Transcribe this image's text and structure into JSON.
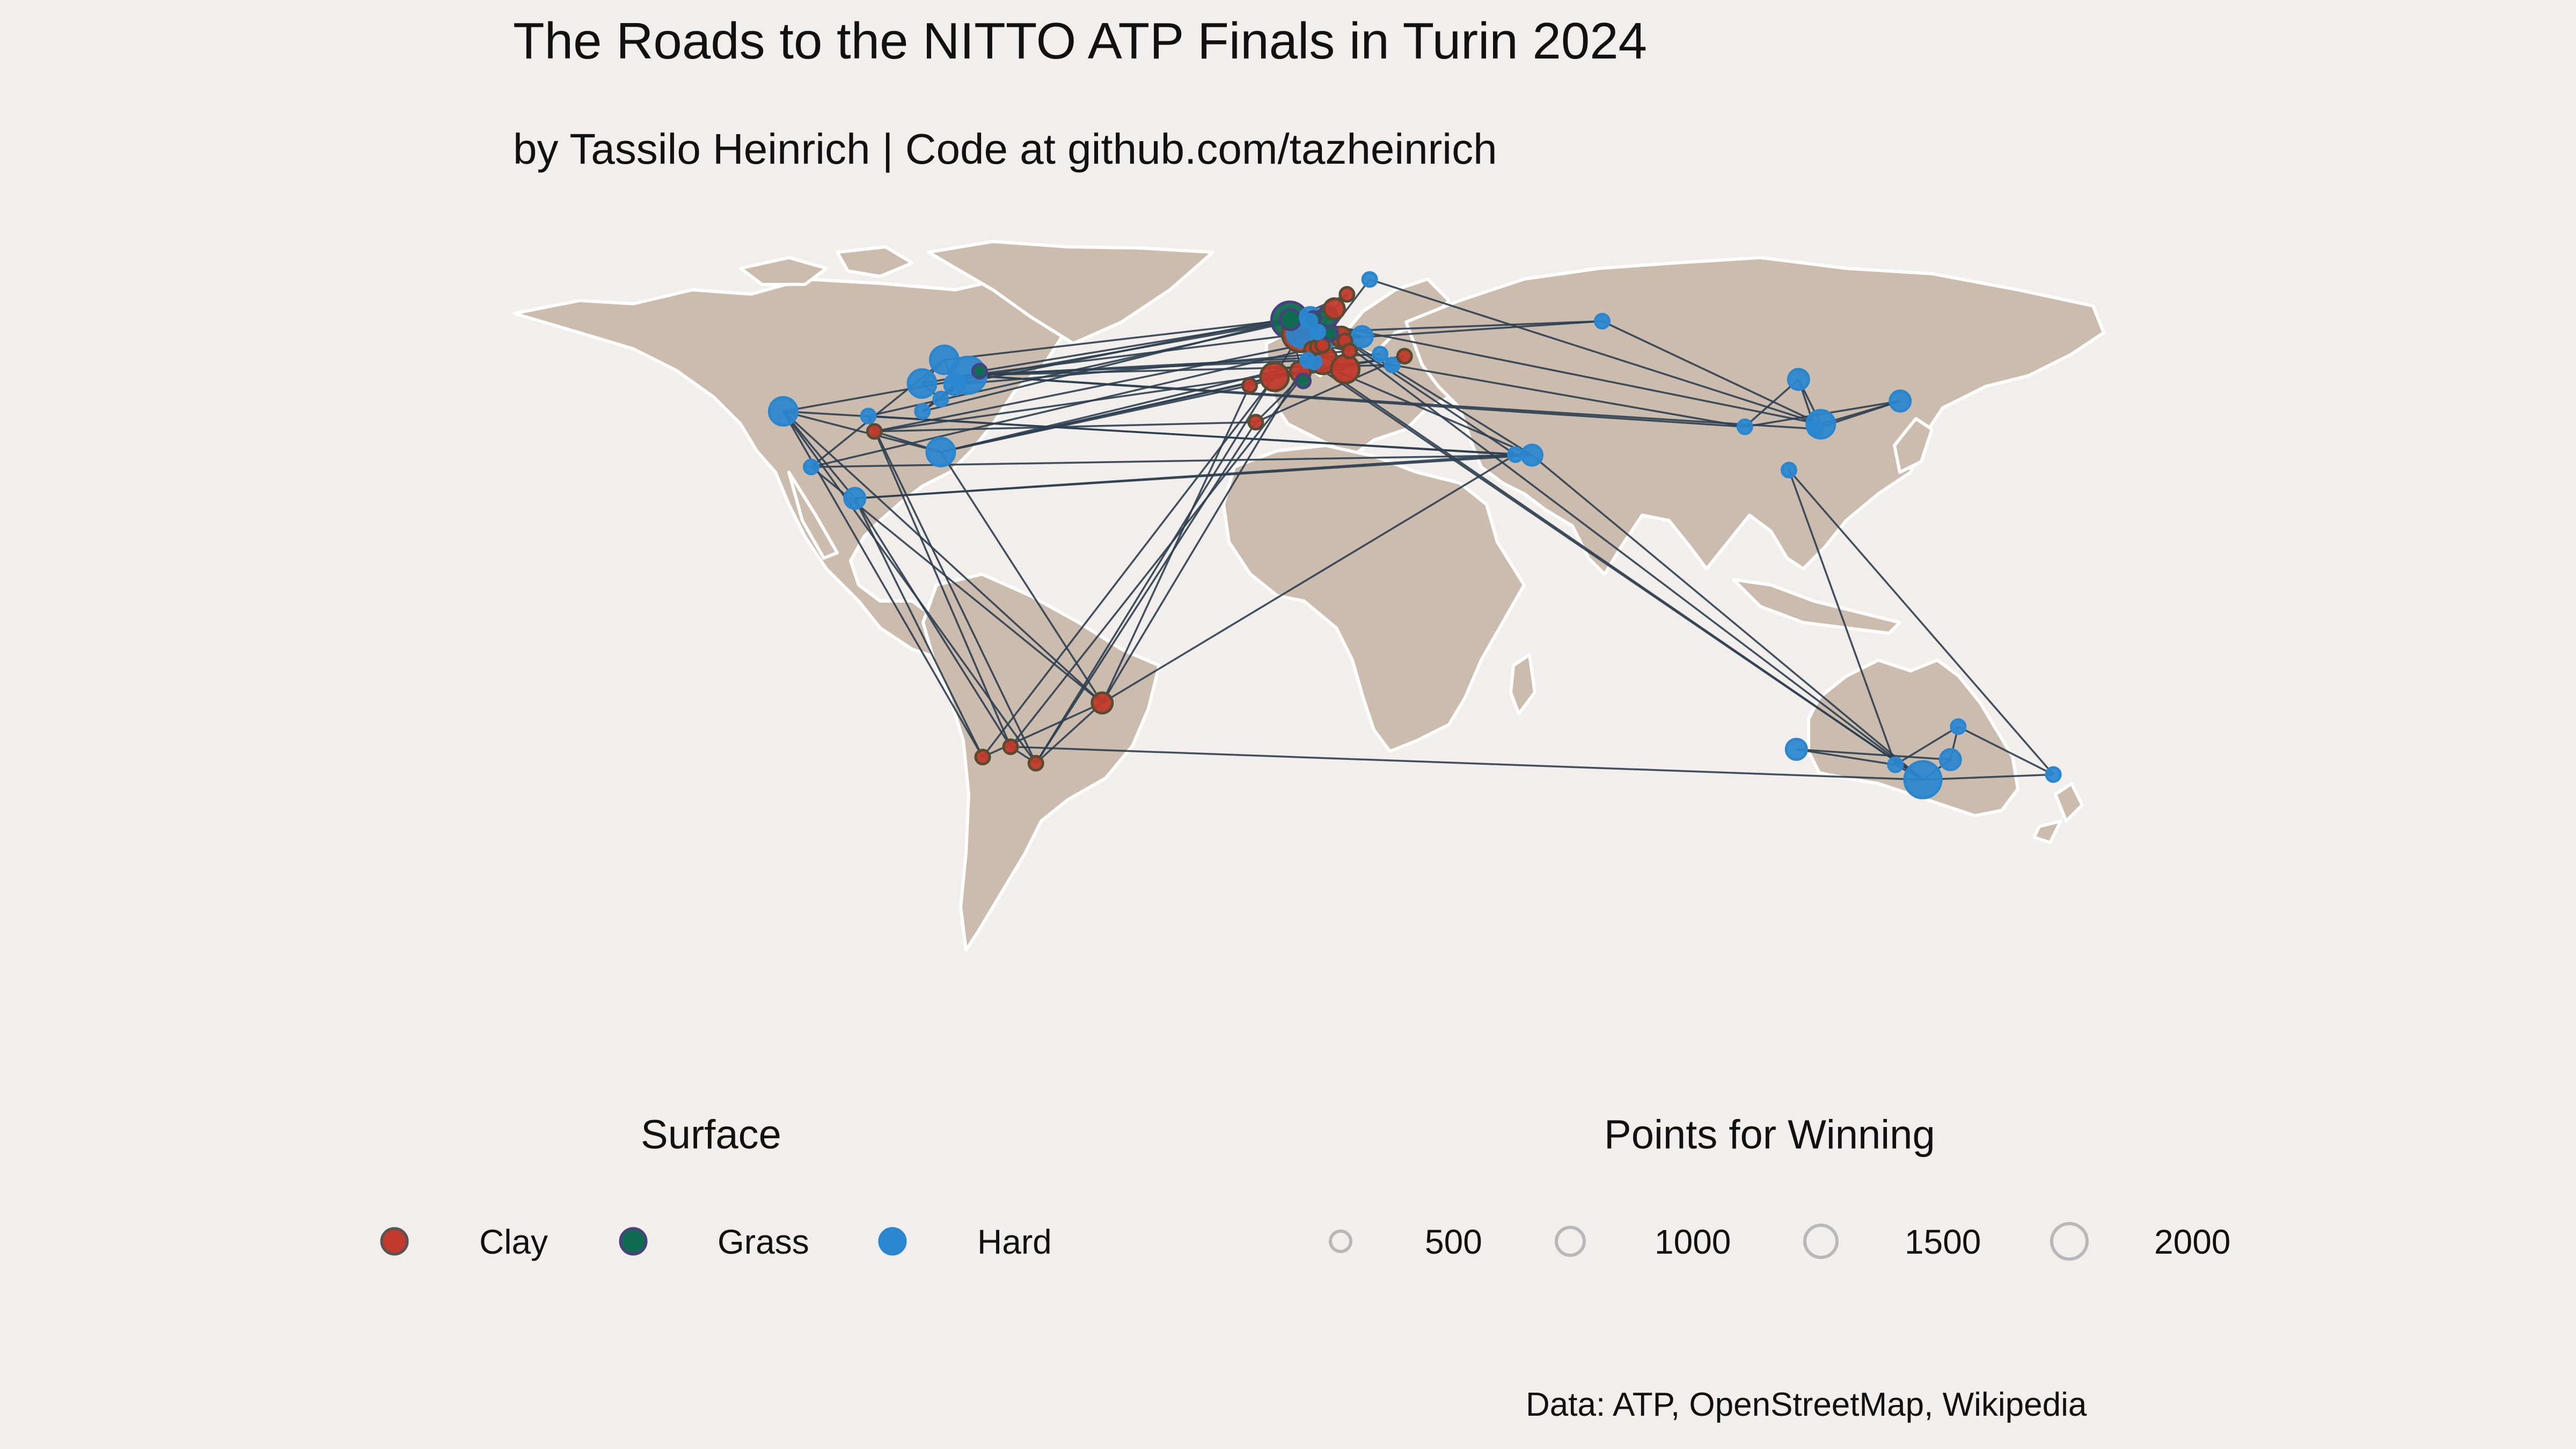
{
  "title": "The Roads to the NITTO ATP Finals in Turin 2024",
  "subtitle": "by Tassilo Heinrich | Code at github.com/tazheinrich",
  "caption": "Data: ATP, OpenStreetMap, Wikipedia",
  "colors": {
    "background": "#f1eeeb",
    "land": "#cbbcae",
    "border": "#ffffff",
    "route": "#2c3e50",
    "clay": "#c0392b",
    "grass": "#0e6b4f",
    "hard": "#2a87cf",
    "size_legend": "#b8b8b8"
  },
  "legend": {
    "surface": {
      "title": "Surface",
      "items": [
        {
          "label": "Clay",
          "surface": "clay"
        },
        {
          "label": "Grass",
          "surface": "grass"
        },
        {
          "label": "Hard",
          "surface": "hard"
        }
      ]
    },
    "points": {
      "title": "Points for Winning",
      "items": [
        {
          "label": "500",
          "value": 500
        },
        {
          "label": "1000",
          "value": 1000
        },
        {
          "label": "1500",
          "value": 1500
        },
        {
          "label": "2000",
          "value": 2000
        }
      ]
    }
  },
  "chart_data": {
    "type": "map",
    "projection": "equirectangular",
    "marks": [
      {
        "id": "indian-wells",
        "lon": -116.3,
        "lat": 33.7,
        "surface": "hard",
        "points": 1000
      },
      {
        "id": "los-cabos",
        "lon": -109.9,
        "lat": 22.9,
        "surface": "hard",
        "points": 250
      },
      {
        "id": "acapulco",
        "lon": -99.9,
        "lat": 16.8,
        "surface": "hard",
        "points": 500
      },
      {
        "id": "dallas",
        "lon": -96.8,
        "lat": 32.8,
        "surface": "hard",
        "points": 250
      },
      {
        "id": "houston",
        "lon": -95.4,
        "lat": 29.8,
        "surface": "clay",
        "points": 250
      },
      {
        "id": "cincinnati",
        "lon": -84.5,
        "lat": 39.1,
        "surface": "hard",
        "points": 1000
      },
      {
        "id": "atlanta",
        "lon": -84.4,
        "lat": 33.7,
        "surface": "hard",
        "points": 250
      },
      {
        "id": "miami",
        "lon": -80.2,
        "lat": 25.8,
        "surface": "hard",
        "points": 1000
      },
      {
        "id": "toronto",
        "lon": -79.4,
        "lat": 43.7,
        "surface": "hard",
        "points": 1000
      },
      {
        "id": "washington",
        "lon": -77.0,
        "lat": 38.9,
        "surface": "hard",
        "points": 500
      },
      {
        "id": "new-york",
        "lon": -74.0,
        "lat": 40.7,
        "surface": "hard",
        "points": 2000
      },
      {
        "id": "winston-salem",
        "lon": -80.2,
        "lat": 36.1,
        "surface": "hard",
        "points": 250
      },
      {
        "id": "newport",
        "lon": -71.3,
        "lat": 41.5,
        "surface": "grass",
        "points": 250
      },
      {
        "id": "santiago",
        "lon": -70.6,
        "lat": -33.4,
        "surface": "clay",
        "points": 250
      },
      {
        "id": "cordoba",
        "lon": -64.2,
        "lat": -31.4,
        "surface": "clay",
        "points": 250
      },
      {
        "id": "buenos-aires",
        "lon": -58.4,
        "lat": -34.6,
        "surface": "clay",
        "points": 250
      },
      {
        "id": "rio",
        "lon": -43.2,
        "lat": -22.9,
        "surface": "clay",
        "points": 500
      },
      {
        "id": "london",
        "lon": -0.1,
        "lat": 51.5,
        "surface": "grass",
        "points": 500
      },
      {
        "id": "wimbledon",
        "lon": -0.2,
        "lat": 51.4,
        "surface": "grass",
        "points": 2000
      },
      {
        "id": "paris",
        "lon": 2.35,
        "lat": 48.9,
        "surface": "hard",
        "points": 1000
      },
      {
        "id": "roland-garros",
        "lon": 2.25,
        "lat": 48.8,
        "surface": "clay",
        "points": 2000
      },
      {
        "id": "rotterdam",
        "lon": 4.5,
        "lat": 51.9,
        "surface": "hard",
        "points": 500
      },
      {
        "id": "s-hertogenbosch",
        "lon": 5.3,
        "lat": 51.7,
        "surface": "grass",
        "points": 250
      },
      {
        "id": "antwerp",
        "lon": 4.4,
        "lat": 51.2,
        "surface": "hard",
        "points": 250
      },
      {
        "id": "marseille",
        "lon": 5.4,
        "lat": 43.3,
        "surface": "hard",
        "points": 250
      },
      {
        "id": "lyon",
        "lon": 4.8,
        "lat": 45.8,
        "surface": "clay",
        "points": 250
      },
      {
        "id": "barcelona",
        "lon": 2.2,
        "lat": 41.4,
        "surface": "clay",
        "points": 500
      },
      {
        "id": "madrid",
        "lon": -3.7,
        "lat": 40.4,
        "surface": "clay",
        "points": 1000
      },
      {
        "id": "estoril",
        "lon": -9.4,
        "lat": 38.7,
        "surface": "clay",
        "points": 250
      },
      {
        "id": "marrakech",
        "lon": -8.0,
        "lat": 31.6,
        "surface": "clay",
        "points": 250
      },
      {
        "id": "monte-carlo",
        "lon": 7.4,
        "lat": 43.7,
        "surface": "clay",
        "points": 1000
      },
      {
        "id": "geneva",
        "lon": 6.1,
        "lat": 46.2,
        "surface": "clay",
        "points": 250
      },
      {
        "id": "basel",
        "lon": 7.6,
        "lat": 47.6,
        "surface": "hard",
        "points": 500
      },
      {
        "id": "gstaad",
        "lon": 7.3,
        "lat": 46.5,
        "surface": "clay",
        "points": 250
      },
      {
        "id": "stuttgart",
        "lon": 9.2,
        "lat": 48.8,
        "surface": "grass",
        "points": 250
      },
      {
        "id": "halle",
        "lon": 8.4,
        "lat": 52.1,
        "surface": "grass",
        "points": 500
      },
      {
        "id": "munich",
        "lon": 11.6,
        "lat": 48.1,
        "surface": "clay",
        "points": 500
      },
      {
        "id": "hamburg",
        "lon": 10.0,
        "lat": 53.6,
        "surface": "clay",
        "points": 500
      },
      {
        "id": "rome",
        "lon": 12.5,
        "lat": 41.9,
        "surface": "clay",
        "points": 1000
      },
      {
        "id": "mallorca",
        "lon": 2.9,
        "lat": 39.6,
        "surface": "grass",
        "points": 250
      },
      {
        "id": "kitzbuehel",
        "lon": 12.4,
        "lat": 47.4,
        "surface": "clay",
        "points": 250
      },
      {
        "id": "umag",
        "lon": 13.5,
        "lat": 45.4,
        "surface": "clay",
        "points": 250
      },
      {
        "id": "vienna",
        "lon": 16.4,
        "lat": 48.2,
        "surface": "hard",
        "points": 500
      },
      {
        "id": "bastad",
        "lon": 12.9,
        "lat": 56.4,
        "surface": "clay",
        "points": 250
      },
      {
        "id": "stockholm",
        "lon": 18.1,
        "lat": 59.3,
        "surface": "hard",
        "points": 250
      },
      {
        "id": "metz",
        "lon": 6.2,
        "lat": 49.1,
        "surface": "hard",
        "points": 250
      },
      {
        "id": "montpellier",
        "lon": 3.9,
        "lat": 43.6,
        "surface": "hard",
        "points": 250
      },
      {
        "id": "belgrade",
        "lon": 20.5,
        "lat": 44.8,
        "surface": "hard",
        "points": 250
      },
      {
        "id": "sofia",
        "lon": 23.3,
        "lat": 42.7,
        "surface": "hard",
        "points": 250
      },
      {
        "id": "bucharest",
        "lon": 26.1,
        "lat": 44.4,
        "surface": "clay",
        "points": 250
      },
      {
        "id": "doha",
        "lon": 51.5,
        "lat": 25.3,
        "surface": "hard",
        "points": 250
      },
      {
        "id": "dubai",
        "lon": 55.3,
        "lat": 25.2,
        "surface": "hard",
        "points": 500
      },
      {
        "id": "astana",
        "lon": 71.4,
        "lat": 51.2,
        "surface": "hard",
        "points": 250
      },
      {
        "id": "chengdu",
        "lon": 104.1,
        "lat": 30.7,
        "surface": "hard",
        "points": 250
      },
      {
        "id": "hangzhou",
        "lon": 120.2,
        "lat": 30.3,
        "surface": "hard",
        "points": 250
      },
      {
        "id": "shanghai",
        "lon": 121.5,
        "lat": 31.2,
        "surface": "hard",
        "points": 1000
      },
      {
        "id": "beijing",
        "lon": 116.4,
        "lat": 39.9,
        "surface": "hard",
        "points": 500
      },
      {
        "id": "tokyo",
        "lon": 139.7,
        "lat": 35.7,
        "surface": "hard",
        "points": 500
      },
      {
        "id": "hong-kong",
        "lon": 114.2,
        "lat": 22.3,
        "surface": "hard",
        "points": 250
      },
      {
        "id": "perth",
        "lon": 115.9,
        "lat": -31.9,
        "surface": "hard",
        "points": 500
      },
      {
        "id": "adelaide",
        "lon": 138.6,
        "lat": -34.9,
        "surface": "hard",
        "points": 250
      },
      {
        "id": "brisbane",
        "lon": 153.0,
        "lat": -27.5,
        "surface": "hard",
        "points": 250
      },
      {
        "id": "sydney",
        "lon": 151.2,
        "lat": -33.9,
        "surface": "hard",
        "points": 500
      },
      {
        "id": "melbourne",
        "lon": 144.9,
        "lat": -37.8,
        "surface": "hard",
        "points": 2000
      },
      {
        "id": "auckland",
        "lon": 174.8,
        "lat": -36.8,
        "surface": "hard",
        "points": 250
      }
    ],
    "routes": [
      [
        "brisbane",
        "auckland"
      ],
      [
        "auckland",
        "melbourne"
      ],
      [
        "adelaide",
        "melbourne"
      ],
      [
        "perth",
        "sydney"
      ],
      [
        "sydney",
        "melbourne"
      ],
      [
        "brisbane",
        "adelaide"
      ],
      [
        "perth",
        "adelaide"
      ],
      [
        "hong-kong",
        "auckland"
      ],
      [
        "hong-kong",
        "adelaide"
      ],
      [
        "melbourne",
        "dubai"
      ],
      [
        "melbourne",
        "rotterdam"
      ],
      [
        "melbourne",
        "montpellier"
      ],
      [
        "melbourne",
        "cordoba"
      ],
      [
        "melbourne",
        "marseille"
      ],
      [
        "sydney",
        "brisbane"
      ],
      [
        "cordoba",
        "buenos-aires"
      ],
      [
        "buenos-aires",
        "rio"
      ],
      [
        "rio",
        "santiago"
      ],
      [
        "santiago",
        "indian-wells"
      ],
      [
        "rio",
        "los-cabos"
      ],
      [
        "santiago",
        "acapulco"
      ],
      [
        "buenos-aires",
        "indian-wells"
      ],
      [
        "cordoba",
        "acapulco"
      ],
      [
        "rio",
        "miami"
      ],
      [
        "rio",
        "indian-wells"
      ],
      [
        "buenos-aires",
        "dallas"
      ],
      [
        "cordoba",
        "dallas"
      ],
      [
        "buenos-aires",
        "rotterdam"
      ],
      [
        "cordoba",
        "marseille"
      ],
      [
        "rio",
        "barcelona"
      ],
      [
        "rio",
        "doha"
      ],
      [
        "buenos-aires",
        "marrakech"
      ],
      [
        "santiago",
        "madrid"
      ],
      [
        "rio",
        "estoril"
      ],
      [
        "rotterdam",
        "doha"
      ],
      [
        "marseille",
        "dubai"
      ],
      [
        "doha",
        "acapulco"
      ],
      [
        "dubai",
        "indian-wells"
      ],
      [
        "dubai",
        "los-cabos"
      ],
      [
        "acapulco",
        "indian-wells"
      ],
      [
        "doha",
        "dallas"
      ],
      [
        "dubai",
        "rotterdam"
      ],
      [
        "acapulco",
        "dubai"
      ],
      [
        "indian-wells",
        "miami"
      ],
      [
        "miami",
        "houston"
      ],
      [
        "miami",
        "estoril"
      ],
      [
        "houston",
        "marrakech"
      ],
      [
        "miami",
        "monte-carlo"
      ],
      [
        "houston",
        "munich"
      ],
      [
        "miami",
        "barcelona"
      ],
      [
        "miami",
        "madrid"
      ],
      [
        "marrakech",
        "munich"
      ],
      [
        "estoril",
        "barcelona"
      ],
      [
        "barcelona",
        "madrid"
      ],
      [
        "madrid",
        "rome"
      ],
      [
        "rome",
        "geneva"
      ],
      [
        "rome",
        "lyon"
      ],
      [
        "geneva",
        "roland-garros"
      ],
      [
        "lyon",
        "roland-garros"
      ],
      [
        "roland-garros",
        "s-hertogenbosch"
      ],
      [
        "roland-garros",
        "stuttgart"
      ],
      [
        "s-hertogenbosch",
        "halle"
      ],
      [
        "stuttgart",
        "london"
      ],
      [
        "halle",
        "mallorca"
      ],
      [
        "london",
        "wimbledon"
      ],
      [
        "mallorca",
        "wimbledon"
      ],
      [
        "wimbledon",
        "newport"
      ],
      [
        "wimbledon",
        "bastad"
      ],
      [
        "wimbledon",
        "gstaad"
      ],
      [
        "wimbledon",
        "hamburg"
      ],
      [
        "bastad",
        "hamburg"
      ],
      [
        "gstaad",
        "umag"
      ],
      [
        "hamburg",
        "atlanta"
      ],
      [
        "newport",
        "atlanta"
      ],
      [
        "umag",
        "kitzbuehel"
      ],
      [
        "atlanta",
        "washington"
      ],
      [
        "kitzbuehel",
        "los-cabos"
      ],
      [
        "umag",
        "washington"
      ],
      [
        "washington",
        "toronto"
      ],
      [
        "los-cabos",
        "toronto"
      ],
      [
        "toronto",
        "cincinnati"
      ],
      [
        "cincinnati",
        "winston-salem"
      ],
      [
        "winston-salem",
        "new-york"
      ],
      [
        "cincinnati",
        "new-york"
      ],
      [
        "new-york",
        "chengdu"
      ],
      [
        "new-york",
        "hangzhou"
      ],
      [
        "chengdu",
        "beijing"
      ],
      [
        "chengdu",
        "tokyo"
      ],
      [
        "hangzhou",
        "beijing"
      ],
      [
        "hangzhou",
        "tokyo"
      ],
      [
        "beijing",
        "shanghai"
      ],
      [
        "tokyo",
        "shanghai"
      ],
      [
        "shanghai",
        "stockholm"
      ],
      [
        "shanghai",
        "antwerp"
      ],
      [
        "shanghai",
        "astana"
      ],
      [
        "astana",
        "basel"
      ],
      [
        "stockholm",
        "basel"
      ],
      [
        "antwerp",
        "vienna"
      ],
      [
        "basel",
        "paris"
      ],
      [
        "vienna",
        "paris"
      ],
      [
        "new-york",
        "metz"
      ],
      [
        "new-york",
        "sofia"
      ],
      [
        "new-york",
        "belgrade"
      ],
      [
        "metz",
        "astana"
      ],
      [
        "sofia",
        "chengdu"
      ],
      [
        "marrakech",
        "bucharest"
      ],
      [
        "bucharest",
        "madrid"
      ],
      [
        "houston",
        "bucharest"
      ],
      [
        "toronto",
        "london"
      ],
      [
        "washington",
        "hamburg"
      ],
      [
        "new-york",
        "montpellier"
      ],
      [
        "dallas",
        "rotterdam"
      ],
      [
        "indian-wells",
        "rotterdam"
      ]
    ]
  }
}
